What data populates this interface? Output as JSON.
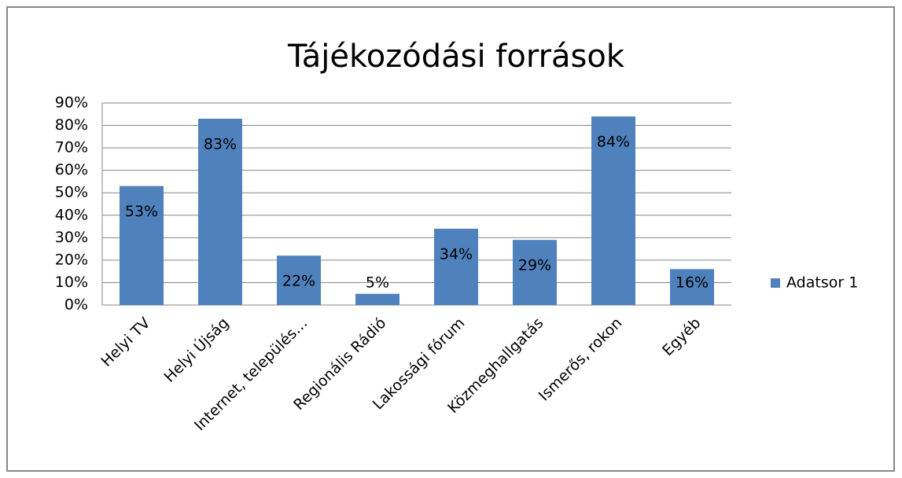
{
  "chart_data": {
    "type": "bar",
    "title": "Tájékozódási források",
    "categories": [
      "Helyi TV",
      "Helyi Újság",
      "Internet, település…",
      "Regionális Rádió",
      "Lakossági fórum",
      "Közmeghallgatás",
      "Ismerős, rokon",
      "Egyéb"
    ],
    "series": [
      {
        "name": "Adatsor 1",
        "color": "#4f81bd",
        "values": [
          53,
          83,
          22,
          5,
          34,
          29,
          84,
          16
        ],
        "value_labels": [
          "53%",
          "83%",
          "22%",
          "5%",
          "34%",
          "29%",
          "84%",
          "16%"
        ]
      }
    ],
    "ylim": [
      0,
      90
    ],
    "yticks": [
      {
        "value": 0,
        "label": "0%"
      },
      {
        "value": 10,
        "label": "10%"
      },
      {
        "value": 20,
        "label": "20%"
      },
      {
        "value": 30,
        "label": "30%"
      },
      {
        "value": 40,
        "label": "40%"
      },
      {
        "value": 50,
        "label": "50%"
      },
      {
        "value": 60,
        "label": "60%"
      },
      {
        "value": 70,
        "label": "70%"
      },
      {
        "value": 80,
        "label": "80%"
      },
      {
        "value": 90,
        "label": "90%"
      }
    ],
    "grid": true,
    "legend": "right"
  }
}
